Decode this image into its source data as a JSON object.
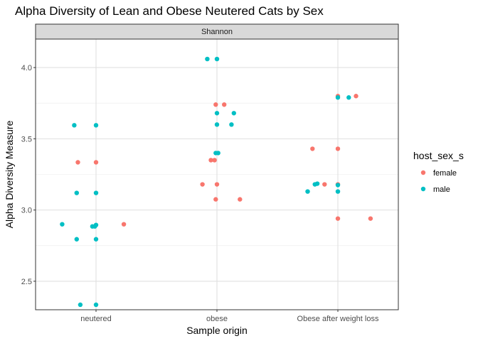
{
  "chart_data": {
    "type": "scatter",
    "title": "Alpha Diversity of Lean and Obese Neutered Cats by Sex",
    "facet_label": "Shannon",
    "xlabel": "Sample origin",
    "ylabel": "Alpha Diversity Measure",
    "categories": [
      "neutered",
      "obese",
      "Obese after weight loss"
    ],
    "ylim": [
      2.3,
      4.2
    ],
    "yticks": [
      2.5,
      3.0,
      3.5,
      4.0
    ],
    "ytick_labels": [
      "2.5",
      "3.0",
      "3.5",
      "4.0"
    ],
    "grid": true,
    "legend": {
      "title": "host_sex_s",
      "position": "right",
      "entries": [
        {
          "name": "female",
          "color": "#F8766D"
        },
        {
          "name": "male",
          "color": "#00BFC4"
        }
      ]
    },
    "series": [
      {
        "name": "female",
        "color": "#F8766D",
        "points": [
          {
            "category": "neutered",
            "jitter": -0.15,
            "y": 3.335
          },
          {
            "category": "neutered",
            "jitter": 0.0,
            "y": 3.335
          },
          {
            "category": "neutered",
            "jitter": 0.23,
            "y": 2.9
          },
          {
            "category": "obese",
            "jitter": -0.12,
            "y": 3.18
          },
          {
            "category": "obese",
            "jitter": 0.0,
            "y": 3.18
          },
          {
            "category": "obese",
            "jitter": -0.05,
            "y": 3.35
          },
          {
            "category": "obese",
            "jitter": -0.02,
            "y": 3.35
          },
          {
            "category": "obese",
            "jitter": -0.01,
            "y": 3.74
          },
          {
            "category": "obese",
            "jitter": 0.06,
            "y": 3.74
          },
          {
            "category": "obese",
            "jitter": -0.01,
            "y": 3.075
          },
          {
            "category": "obese",
            "jitter": 0.19,
            "y": 3.075
          },
          {
            "category": "Obese after weight loss",
            "jitter": -0.21,
            "y": 3.43
          },
          {
            "category": "Obese after weight loss",
            "jitter": 0.0,
            "y": 3.43
          },
          {
            "category": "Obese after weight loss",
            "jitter": -0.11,
            "y": 3.18
          },
          {
            "category": "Obese after weight loss",
            "jitter": 0.0,
            "y": 3.18
          },
          {
            "category": "Obese after weight loss",
            "jitter": 0.0,
            "y": 3.8
          },
          {
            "category": "Obese after weight loss",
            "jitter": 0.15,
            "y": 3.8
          },
          {
            "category": "Obese after weight loss",
            "jitter": 0.0,
            "y": 2.94
          },
          {
            "category": "Obese after weight loss",
            "jitter": 0.27,
            "y": 2.94
          }
        ]
      },
      {
        "name": "male",
        "color": "#00BFC4",
        "points": [
          {
            "category": "neutered",
            "jitter": -0.18,
            "y": 3.595
          },
          {
            "category": "neutered",
            "jitter": 0.0,
            "y": 3.595
          },
          {
            "category": "neutered",
            "jitter": -0.16,
            "y": 3.12
          },
          {
            "category": "neutered",
            "jitter": 0.0,
            "y": 3.12
          },
          {
            "category": "neutered",
            "jitter": -0.28,
            "y": 2.9
          },
          {
            "category": "neutered",
            "jitter": -0.03,
            "y": 2.885
          },
          {
            "category": "neutered",
            "jitter": -0.01,
            "y": 2.885
          },
          {
            "category": "neutered",
            "jitter": 0.0,
            "y": 2.895
          },
          {
            "category": "neutered",
            "jitter": -0.16,
            "y": 2.795
          },
          {
            "category": "neutered",
            "jitter": 0.0,
            "y": 2.795
          },
          {
            "category": "neutered",
            "jitter": -0.13,
            "y": 2.335
          },
          {
            "category": "neutered",
            "jitter": 0.0,
            "y": 2.335
          },
          {
            "category": "obese",
            "jitter": -0.08,
            "y": 4.06
          },
          {
            "category": "obese",
            "jitter": 0.0,
            "y": 4.06
          },
          {
            "category": "obese",
            "jitter": 0.0,
            "y": 3.68
          },
          {
            "category": "obese",
            "jitter": 0.14,
            "y": 3.68
          },
          {
            "category": "obese",
            "jitter": 0.0,
            "y": 3.6
          },
          {
            "category": "obese",
            "jitter": 0.12,
            "y": 3.6
          },
          {
            "category": "obese",
            "jitter": -0.01,
            "y": 3.4
          },
          {
            "category": "obese",
            "jitter": 0.01,
            "y": 3.4
          },
          {
            "category": "Obese after weight loss",
            "jitter": 0.0,
            "y": 3.79
          },
          {
            "category": "Obese after weight loss",
            "jitter": 0.09,
            "y": 3.79
          },
          {
            "category": "Obese after weight loss",
            "jitter": -0.19,
            "y": 3.18
          },
          {
            "category": "Obese after weight loss",
            "jitter": -0.17,
            "y": 3.185
          },
          {
            "category": "Obese after weight loss",
            "jitter": 0.0,
            "y": 3.175
          },
          {
            "category": "Obese after weight loss",
            "jitter": -0.25,
            "y": 3.13
          },
          {
            "category": "Obese after weight loss",
            "jitter": 0.0,
            "y": 3.13
          }
        ]
      }
    ]
  }
}
